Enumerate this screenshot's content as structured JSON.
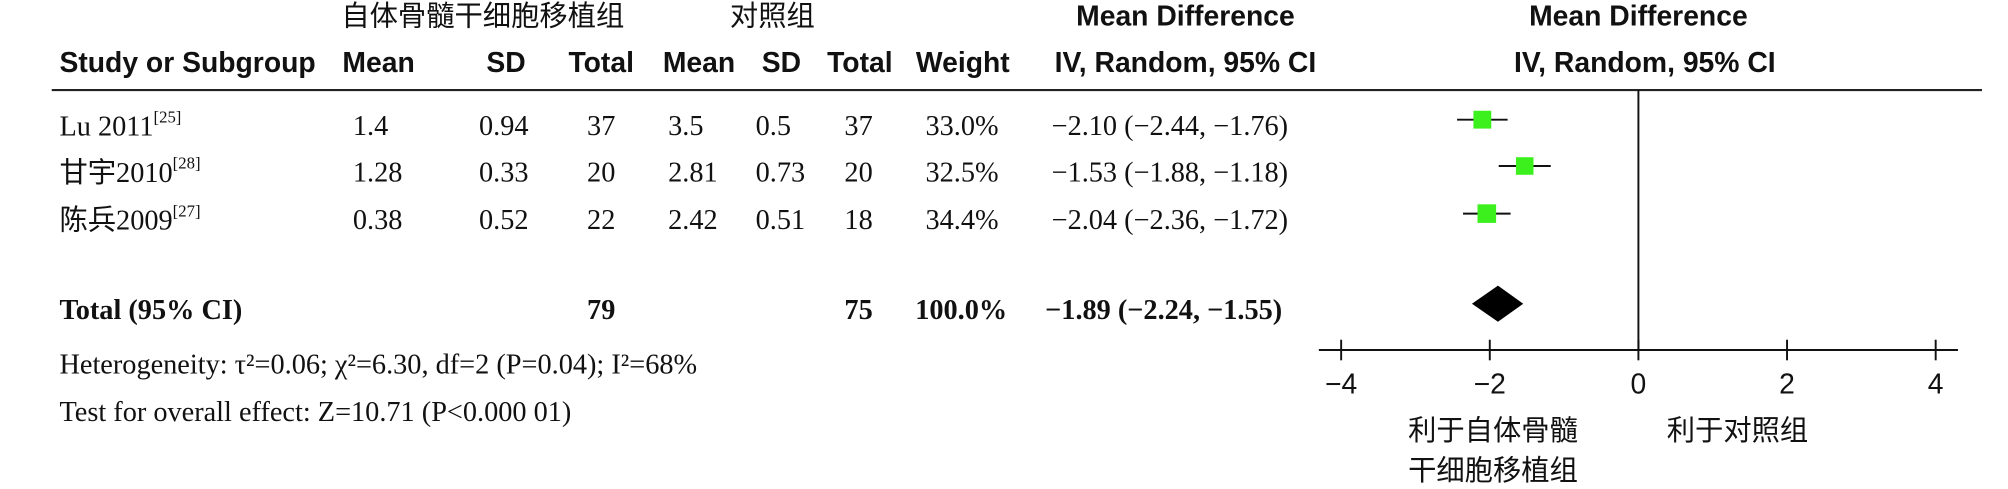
{
  "chart_data": {
    "type": "forest",
    "group_headers": {
      "experimental": "自体骨髓干细胞移植组",
      "control": "对照组",
      "effect": "Mean Difference",
      "plot": "Mean Difference"
    },
    "column_headers": [
      "Study or Subgroup",
      "Mean",
      "SD",
      "Total",
      "Mean",
      "SD",
      "Total",
      "Weight",
      "IV, Random, 95% CI",
      "IV, Random, 95% CI"
    ],
    "studies": [
      {
        "name": "Lu 2011",
        "ref": "[25]",
        "exp_mean": 1.4,
        "exp_sd": 0.94,
        "exp_total": 37,
        "ctrl_mean": 3.5,
        "ctrl_sd": 0.5,
        "ctrl_total": 37,
        "weight": 33,
        "weight_label": "33.0%",
        "md": -2.1,
        "ci": [
          -2.44,
          -1.76
        ],
        "effect_label": "−2.10 (−2.44, −1.76)"
      },
      {
        "name": "甘宇2010",
        "ref": "[28]",
        "exp_mean": 1.28,
        "exp_sd": 0.33,
        "exp_total": 20,
        "ctrl_mean": 2.81,
        "ctrl_sd": 0.73,
        "ctrl_total": 20,
        "weight": 32.5,
        "weight_label": "32.5%",
        "md": -1.53,
        "ci": [
          -1.88,
          -1.18
        ],
        "effect_label": "−1.53 (−1.88, −1.18)"
      },
      {
        "name": "陈兵2009",
        "ref": "[27]",
        "exp_mean": 0.38,
        "exp_sd": 0.52,
        "exp_total": 22,
        "ctrl_mean": 2.42,
        "ctrl_sd": 0.51,
        "ctrl_total": 18,
        "weight": 34.4,
        "weight_label": "34.4%",
        "md": -2.04,
        "ci": [
          -2.36,
          -1.72
        ],
        "effect_label": "−2.04 (−2.36, −1.72)"
      }
    ],
    "total": {
      "label": "Total (95% CI)",
      "exp_total": 79,
      "ctrl_total": 75,
      "weight": 100,
      "weight_label": "100.0%",
      "md": -1.89,
      "ci": [
        -2.24,
        -1.55
      ],
      "effect_label": "−1.89 (−2.24, −1.55)"
    },
    "heterogeneity": "Heterogeneity: τ²=0.06; χ²=6.30, df=2 (P=0.04); I²=68%",
    "overall_effect": "Test for overall effect: Z=10.71 (P<0.000 01)",
    "xlim": [
      -4.3,
      4.3
    ],
    "xticks": [
      {
        "value": -4,
        "label": "−4"
      },
      {
        "value": -2,
        "label": "−2"
      },
      0,
      2,
      4
    ],
    "favours_left": [
      "利于自体骨髓",
      "干细胞移植组"
    ],
    "favours_right": "利于对照组",
    "marker_color": "#3cf01e",
    "diamond_color": "#000000"
  }
}
